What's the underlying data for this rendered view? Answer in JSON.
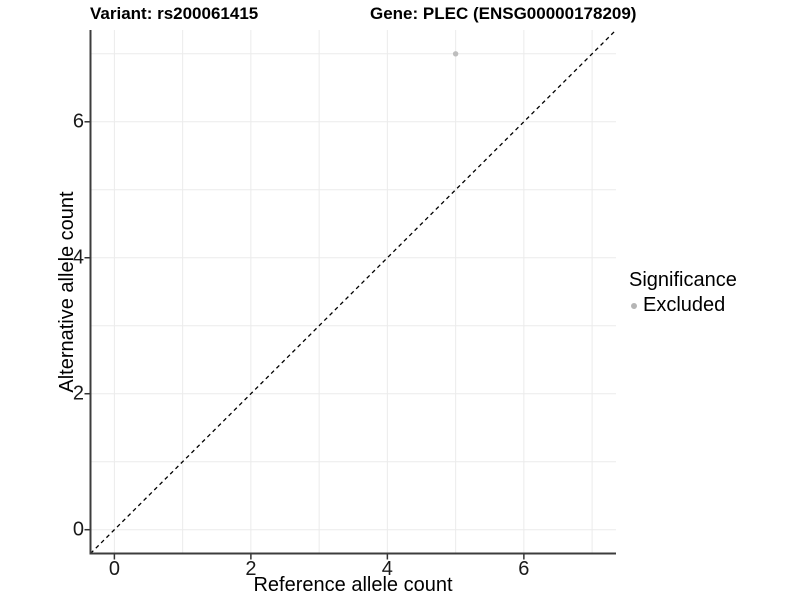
{
  "figure": {
    "title_left": "Variant: rs200061415",
    "title_right": "Gene: PLEC (ENSG00000178209)"
  },
  "chart_data": {
    "type": "scatter",
    "titles": [
      "Variant: rs200061415",
      "Gene: PLEC (ENSG00000178209)"
    ],
    "xlabel": "Reference allele count",
    "ylabel": "Alternative allele count",
    "xlim": [
      -0.35,
      7.35
    ],
    "ylim": [
      -0.35,
      7.35
    ],
    "xticks": [
      {
        "value": 0,
        "label": "0"
      },
      {
        "value": 2,
        "label": "2"
      },
      {
        "value": 4,
        "label": "4"
      },
      {
        "value": 6,
        "label": "6"
      }
    ],
    "yticks": [
      {
        "value": 0,
        "label": "0"
      },
      {
        "value": 2,
        "label": "2"
      },
      {
        "value": 4,
        "label": "4"
      },
      {
        "value": 6,
        "label": "6"
      }
    ],
    "grid_positions": [
      0,
      1,
      2,
      3,
      4,
      5,
      6,
      7
    ],
    "grid": true,
    "series": [
      {
        "name": "Excluded",
        "color": "#bebebe",
        "points": [
          {
            "x": 5,
            "y": 7
          }
        ]
      }
    ],
    "reference_line": {
      "type": "identity",
      "style": "dashed",
      "color": "#000000",
      "from": [
        -0.35,
        -0.35
      ],
      "to": [
        7.35,
        7.35
      ]
    },
    "legend": {
      "title": "Significance",
      "position": "right",
      "items": [
        {
          "label": "Excluded",
          "color": "#b5b5b5"
        }
      ]
    },
    "colors": {
      "grid": "#ebebeb",
      "axis_line": "#3c3c3c",
      "tick_mark": "#333333",
      "point": "#bebebe",
      "dashed_line": "#000000"
    }
  }
}
